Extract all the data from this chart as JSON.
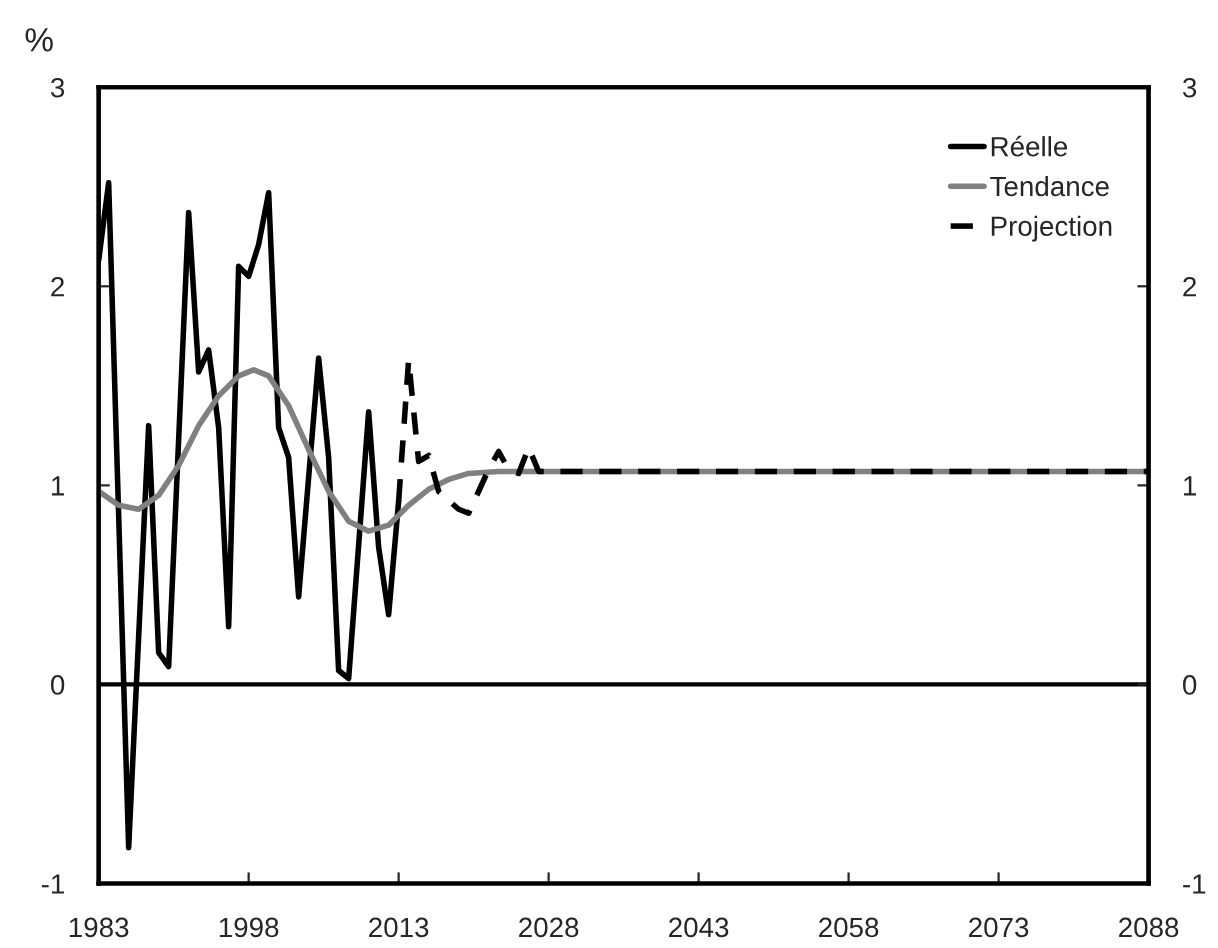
{
  "chart_data": {
    "type": "line",
    "ylabel": "%",
    "series": [
      {
        "name": "Réelle",
        "color": "#000000",
        "line_style": "solid",
        "x": [
          1983,
          1984,
          1986,
          1988,
          1989,
          1990,
          1992,
          1993,
          1994,
          1995,
          1996,
          1997,
          1998,
          1999,
          2000,
          2001,
          2002,
          2003,
          2005,
          2006,
          2007,
          2008,
          2010,
          2011,
          2012,
          2013
        ],
        "values": [
          2.13,
          2.52,
          -0.82,
          1.3,
          0.16,
          0.09,
          2.37,
          1.57,
          1.68,
          1.29,
          0.29,
          2.1,
          2.05,
          2.21,
          2.47,
          1.29,
          1.14,
          0.44,
          1.64,
          1.14,
          0.07,
          0.03,
          1.37,
          0.69,
          0.35,
          0.92
        ]
      },
      {
        "name": "Tendance",
        "color": "#808080",
        "line_style": "solid",
        "x": [
          1983,
          1985,
          1987,
          1989,
          1991,
          1993,
          1995,
          1997,
          1998.5,
          2000,
          2002,
          2004,
          2006,
          2008,
          2010,
          2012,
          2014,
          2016,
          2018,
          2020,
          2023,
          2088
        ],
        "values": [
          0.97,
          0.9,
          0.88,
          0.95,
          1.1,
          1.3,
          1.45,
          1.55,
          1.58,
          1.55,
          1.4,
          1.18,
          0.97,
          0.82,
          0.77,
          0.8,
          0.9,
          0.98,
          1.03,
          1.06,
          1.07,
          1.07
        ]
      },
      {
        "name": "Projection",
        "color": "#000000",
        "line_style": "dashed",
        "x": [
          2013,
          2014,
          2015,
          2016,
          2017,
          2019,
          2020,
          2022,
          2023,
          2024,
          2025,
          2026,
          2027,
          2088
        ],
        "values": [
          0.92,
          1.63,
          1.12,
          1.15,
          0.97,
          0.88,
          0.86,
          1.08,
          1.17,
          1.08,
          1.06,
          1.19,
          1.07,
          1.07
        ]
      }
    ],
    "xlim": [
      1983,
      2088
    ],
    "xticks": [
      1983,
      1998,
      2013,
      2028,
      2043,
      2058,
      2073,
      2088
    ],
    "ylim": [
      -1,
      3
    ],
    "yticks": [
      -1,
      0,
      1,
      2,
      3
    ],
    "y2lim": [
      -1,
      3
    ],
    "y2ticks": [
      -1,
      0,
      1,
      2,
      3
    ],
    "ref_lines": [
      {
        "axis": "y",
        "value": 0,
        "color": "#000000"
      }
    ],
    "grid": false,
    "legend": "top right"
  }
}
